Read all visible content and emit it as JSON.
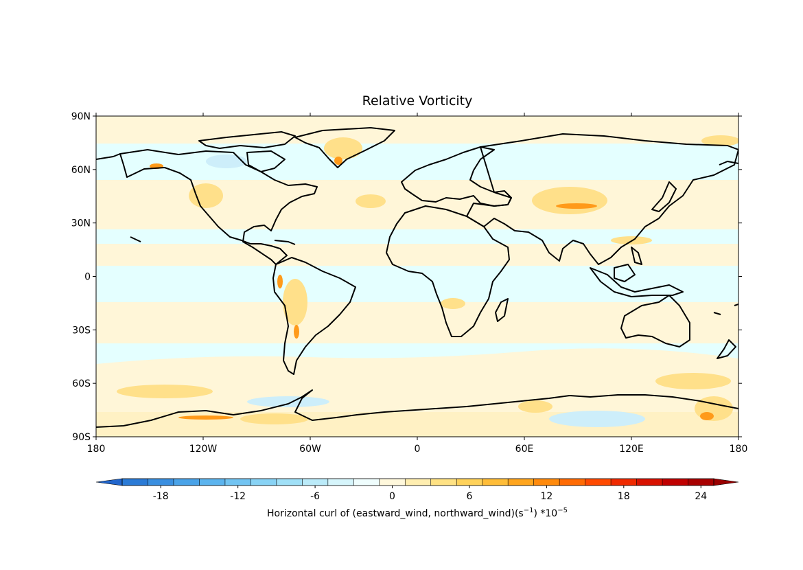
{
  "title": "Relative Vorticity",
  "lat_ticks": [
    "90N",
    "60N",
    "30N",
    "0",
    "30S",
    "60S",
    "90S"
  ],
  "lon_ticks": [
    "180",
    "120W",
    "60W",
    "0",
    "60E",
    "120E",
    "180"
  ],
  "colorbar": {
    "label_main": "Horizontal curl of (eastward_wind, northward_wind)(s",
    "label_unit_exp": "−1",
    "label_mid": ") *10",
    "label_scale_exp": "−5",
    "tick_labels": [
      "-18",
      "-12",
      "-6",
      "0",
      "6",
      "12",
      "18",
      "24"
    ],
    "tick_values": [
      -18,
      -12,
      -6,
      0,
      6,
      12,
      18,
      24
    ],
    "levels_min": -20,
    "levels_step": 2,
    "colors": [
      "#2b7bd6",
      "#3a8fe0",
      "#4aa3e8",
      "#5cb4ee",
      "#72c4f2",
      "#88d3f5",
      "#a0e0f7",
      "#bbebf9",
      "#d6f5fb",
      "#effdfd",
      "#fff8dc",
      "#ffeeb0",
      "#ffe284",
      "#ffd25a",
      "#ffbd38",
      "#ffa51e",
      "#ff8a0c",
      "#ff6b04",
      "#ff4a00",
      "#f02a00",
      "#d81200",
      "#c00000",
      "#a80000"
    ],
    "extend_low_color": "#2266cc",
    "extend_high_color": "#990000"
  },
  "map": {
    "ocean_background_color": "#e4ffff",
    "positive_band_color": "#fff6d8",
    "coastline_color": "#000000"
  }
}
